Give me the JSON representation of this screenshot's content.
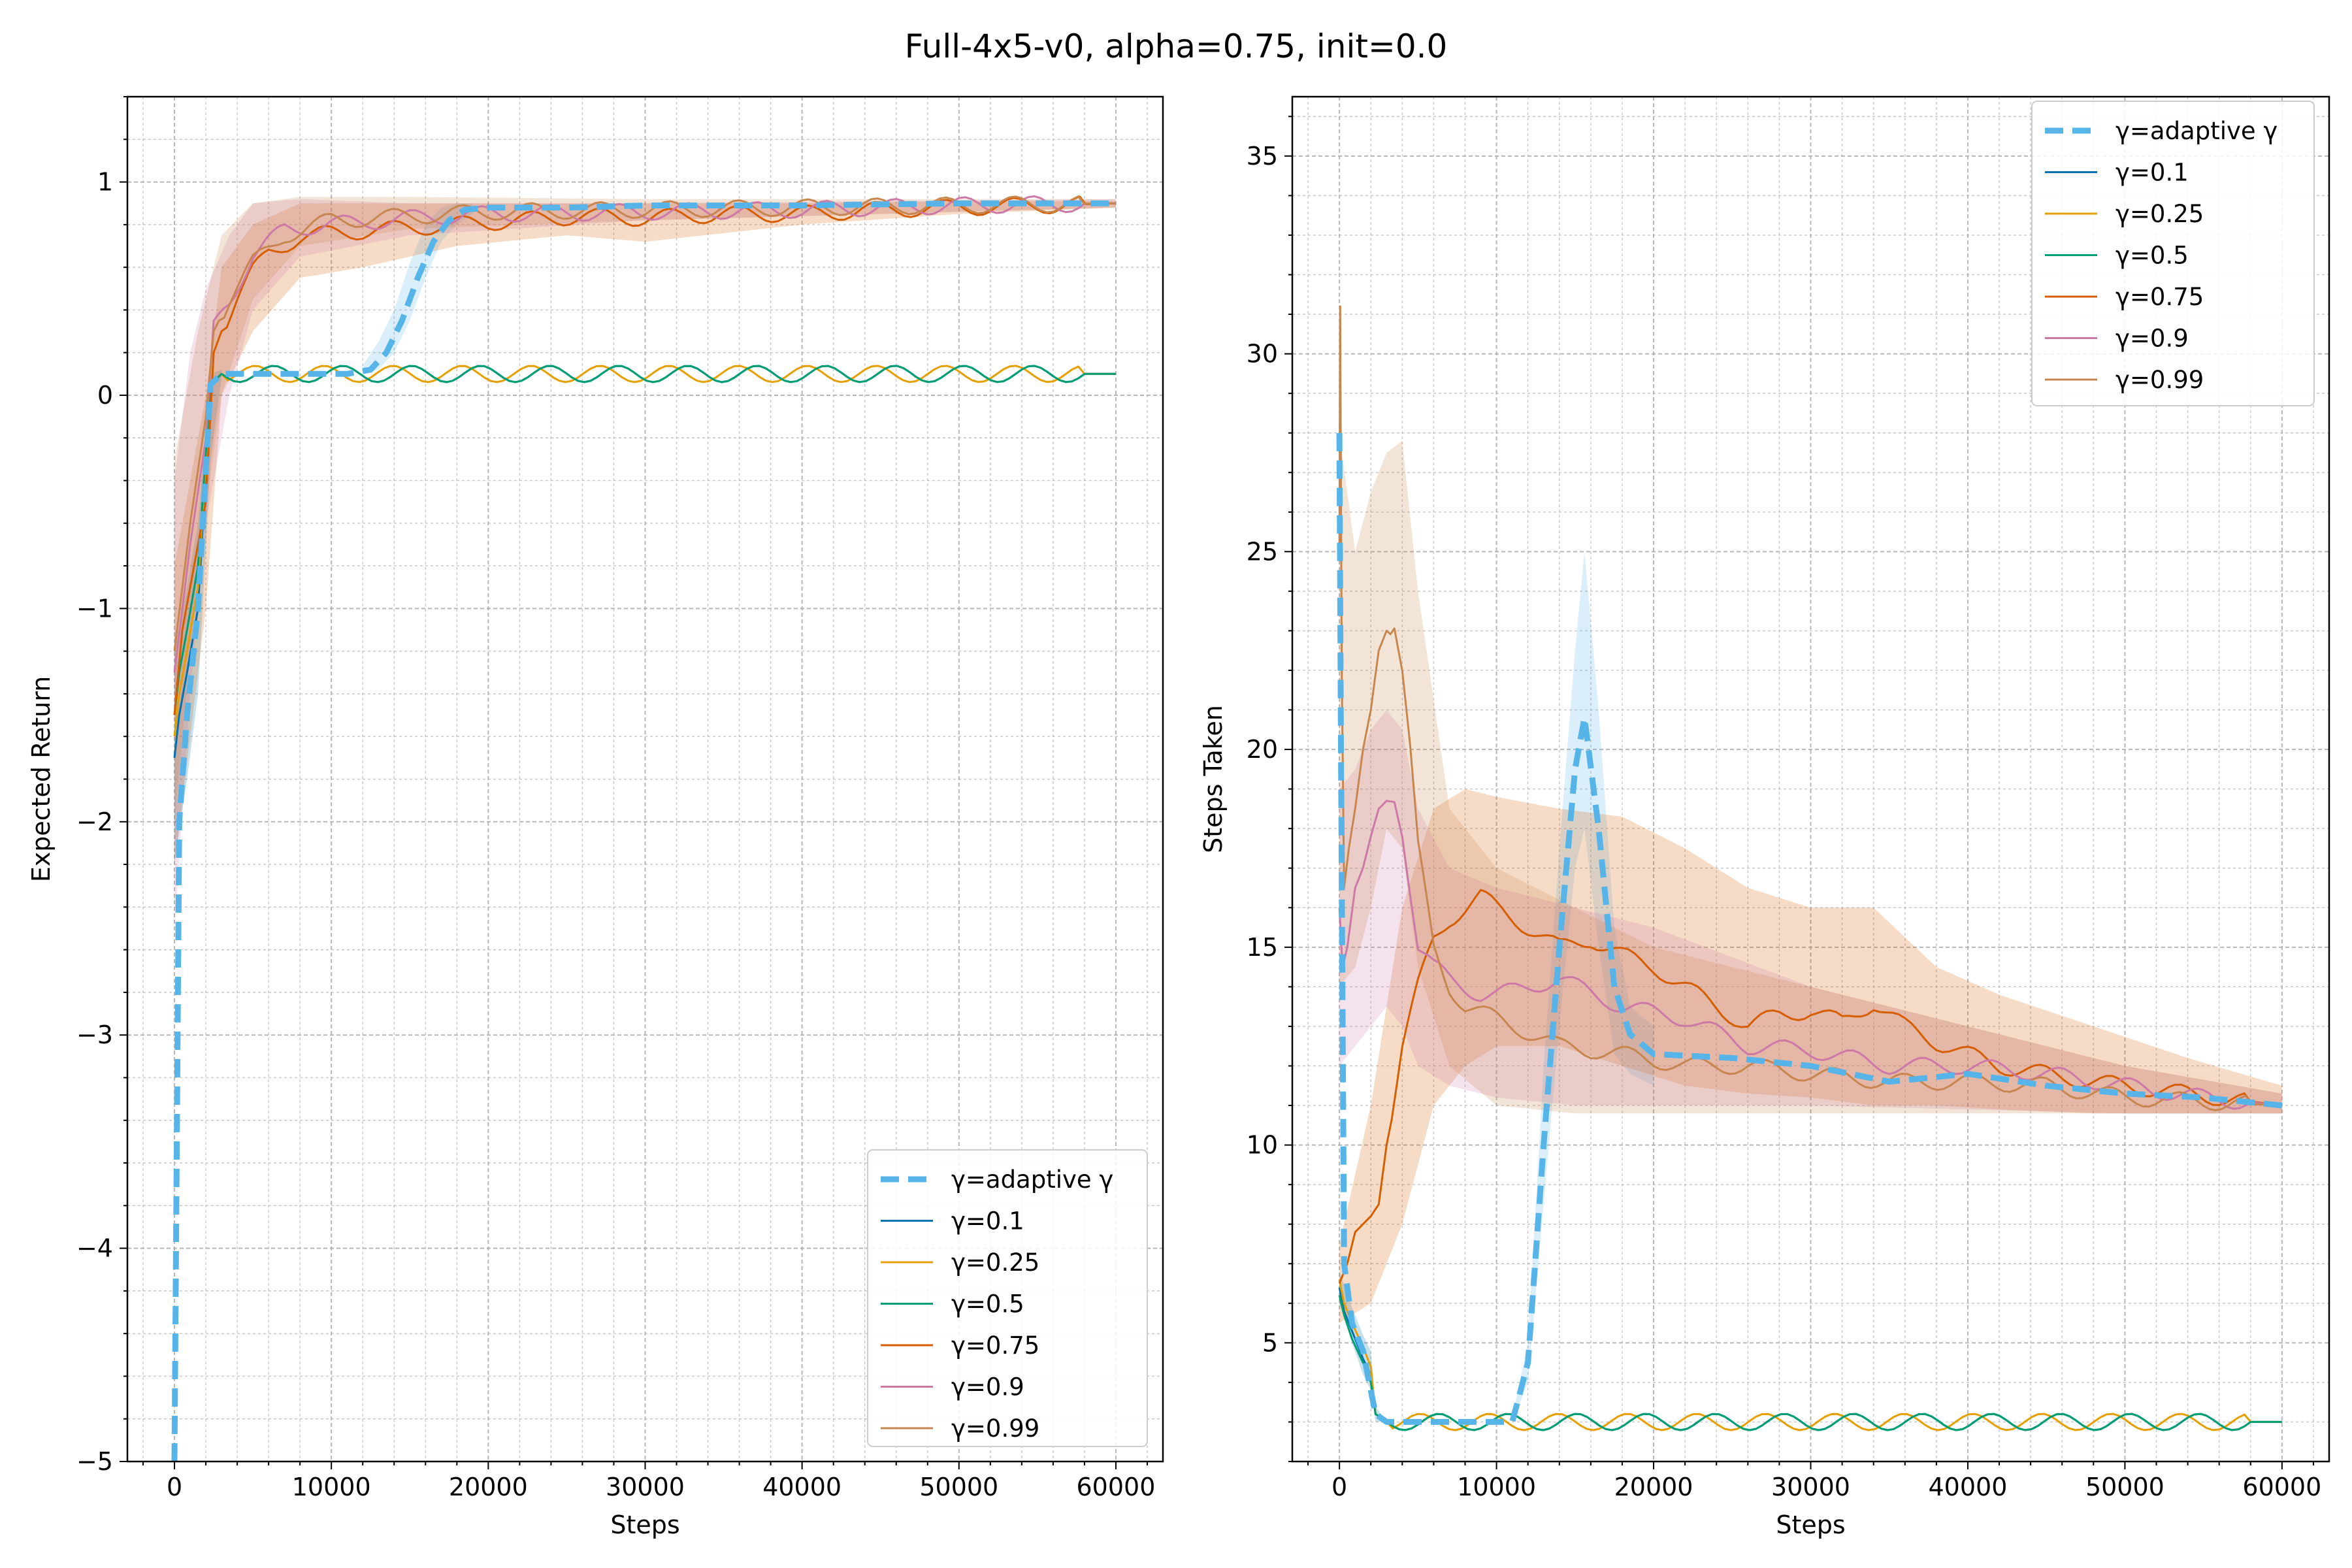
{
  "figure": {
    "title": "Full-4x5-v0, alpha=0.75, init=0.0"
  },
  "colors": {
    "adaptive": "#56b4e9",
    "0.1": "#0072b2",
    "0.25": "#e69f00",
    "0.5": "#009e73",
    "0.75": "#d55e00",
    "0.9": "#cc79a7",
    "0.99": "#c8864f",
    "grid": "#b0b0b0"
  },
  "chart_data": [
    {
      "type": "line",
      "name": "expected-return",
      "xlabel": "Steps",
      "ylabel": "Expected Return",
      "xlim": [
        -3000,
        63000
      ],
      "ylim": [
        -5,
        1.4
      ],
      "xticks": [
        0,
        10000,
        20000,
        30000,
        40000,
        50000,
        60000
      ],
      "yticks": [
        -5,
        -4,
        -3,
        -2,
        -1,
        0,
        1
      ],
      "ytick_labels": [
        "−5",
        "−4",
        "−3",
        "−2",
        "−1",
        "0",
        "1"
      ],
      "grid": true,
      "legend": "lower-right",
      "series": [
        {
          "name": "γ=adaptive γ",
          "key": "adaptive",
          "dashed": true,
          "width": 9,
          "x": [
            0,
            300,
            800,
            1500,
            2300,
            3000,
            5000,
            8000,
            11000,
            12500,
            13500,
            14500,
            15500,
            16500,
            17500,
            18500,
            20000,
            25000,
            30000,
            40000,
            50000,
            60000
          ],
          "y": [
            -5,
            -2.0,
            -1.5,
            -1.0,
            0.05,
            0.1,
            0.1,
            0.1,
            0.1,
            0.12,
            0.2,
            0.35,
            0.55,
            0.72,
            0.82,
            0.87,
            0.88,
            0.88,
            0.89,
            0.89,
            0.9,
            0.9
          ],
          "band": {
            "x": [
              12000,
              13000,
              14000,
              15000,
              16000,
              17000,
              18000,
              19000
            ],
            "lo": [
              0.1,
              0.12,
              0.2,
              0.35,
              0.55,
              0.72,
              0.8,
              0.85
            ],
            "hi": [
              0.14,
              0.25,
              0.4,
              0.62,
              0.8,
              0.88,
              0.9,
              0.9
            ]
          }
        },
        {
          "name": "γ=0.1",
          "key": "0.1",
          "width": 3,
          "x": [
            0,
            300,
            800,
            1500,
            2300,
            3000,
            60000
          ],
          "y": [
            -1.7,
            -1.5,
            -1.3,
            -1.0,
            0.05,
            0.1,
            0.1
          ],
          "band": {
            "x": [
              0,
              800,
              1500,
              2300,
              3000
            ],
            "lo": [
              -2.2,
              -1.8,
              -1.4,
              -0.3,
              0.08
            ],
            "hi": [
              -1.2,
              -0.9,
              -0.6,
              0.1,
              0.12
            ]
          }
        },
        {
          "name": "γ=0.25",
          "key": "0.25",
          "width": 3,
          "x": [
            0,
            300,
            800,
            1500,
            2300,
            3000,
            60000
          ],
          "y": [
            -1.6,
            -1.4,
            -1.2,
            -0.9,
            0.05,
            0.1,
            0.1
          ]
        },
        {
          "name": "γ=0.5",
          "key": "0.5",
          "width": 3,
          "x": [
            0,
            300,
            800,
            1500,
            2300,
            3000,
            60000
          ],
          "y": [
            -1.5,
            -1.3,
            -1.1,
            -0.8,
            0.05,
            0.1,
            0.1
          ]
        },
        {
          "name": "γ=0.75",
          "key": "0.75",
          "width": 3,
          "x": [
            0,
            500,
            1000,
            1500,
            2000,
            2500,
            3000,
            4000,
            5000,
            6000,
            8000,
            10000,
            14000,
            18000,
            22000,
            26000,
            30000,
            35000,
            40000,
            45000,
            50000,
            55000,
            60000
          ],
          "y": [
            -1.5,
            -1.1,
            -0.9,
            -0.7,
            -0.5,
            0.2,
            0.3,
            0.45,
            0.58,
            0.67,
            0.74,
            0.76,
            0.78,
            0.8,
            0.82,
            0.84,
            0.83,
            0.85,
            0.85,
            0.87,
            0.88,
            0.89,
            0.9
          ],
          "band": {
            "x": [
              0,
              2000,
              3000,
              5000,
              8000,
              12000,
              18000,
              25000,
              30000,
              40000,
              50000,
              60000
            ],
            "lo": [
              -2.2,
              -1.0,
              0.0,
              0.3,
              0.55,
              0.6,
              0.7,
              0.75,
              0.72,
              0.8,
              0.85,
              0.88
            ],
            "hi": [
              -0.8,
              0.0,
              0.6,
              0.8,
              0.9,
              0.9,
              0.9,
              0.9,
              0.9,
              0.9,
              0.91,
              0.91
            ]
          }
        },
        {
          "name": "γ=0.9",
          "key": "0.9",
          "width": 3,
          "x": [
            0,
            500,
            1000,
            2000,
            2500,
            3500,
            5000,
            7000,
            10000,
            15000,
            20000,
            30000,
            40000,
            50000,
            60000
          ],
          "y": [
            -1.3,
            -1.0,
            -0.7,
            -0.2,
            0.35,
            0.45,
            0.65,
            0.78,
            0.8,
            0.83,
            0.85,
            0.86,
            0.87,
            0.89,
            0.9
          ],
          "band": {
            "x": [
              0,
              1000,
              2000,
              3500,
              5000,
              8000,
              15000,
              30000,
              60000
            ],
            "lo": [
              -2.5,
              -1.4,
              -0.6,
              0.0,
              0.4,
              0.65,
              0.75,
              0.82,
              0.88
            ],
            "hi": [
              -0.4,
              0.2,
              0.5,
              0.75,
              0.9,
              0.92,
              0.9,
              0.9,
              0.92
            ]
          }
        },
        {
          "name": "γ=0.99",
          "key": "0.99",
          "width": 3,
          "x": [
            0,
            500,
            1000,
            2000,
            2500,
            3500,
            5000,
            7000,
            10000,
            15000,
            20000,
            30000,
            40000,
            50000,
            60000
          ],
          "y": [
            -1.2,
            -0.9,
            -0.6,
            -0.1,
            0.3,
            0.45,
            0.62,
            0.75,
            0.82,
            0.84,
            0.86,
            0.87,
            0.88,
            0.89,
            0.9
          ],
          "band": {
            "x": [
              0,
              1500,
              3000,
              5000,
              8000,
              15000,
              30000,
              60000
            ],
            "lo": [
              -2.0,
              -0.8,
              0.0,
              0.45,
              0.7,
              0.78,
              0.82,
              0.88
            ],
            "hi": [
              -0.3,
              0.3,
              0.75,
              0.9,
              0.93,
              0.93,
              0.92,
              0.92
            ]
          }
        }
      ]
    },
    {
      "type": "line",
      "name": "steps-taken",
      "xlabel": "Steps",
      "ylabel": "Steps Taken",
      "xlim": [
        -3000,
        63000
      ],
      "ylim": [
        2,
        36.5
      ],
      "xticks": [
        0,
        10000,
        20000,
        30000,
        40000,
        50000,
        60000
      ],
      "yticks": [
        5,
        10,
        15,
        20,
        25,
        30,
        35
      ],
      "ytick_labels": [
        "5",
        "10",
        "15",
        "20",
        "25",
        "30",
        "35"
      ],
      "grid": true,
      "legend": "upper-right",
      "series": [
        {
          "name": "γ=adaptive γ",
          "key": "adaptive",
          "dashed": true,
          "width": 9,
          "x": [
            0,
            100,
            300,
            800,
            1500,
            2300,
            3000,
            6000,
            9000,
            11000,
            12000,
            13000,
            14000,
            15000,
            15600,
            16500,
            17500,
            18500,
            20000,
            25000,
            30000,
            35000,
            40000,
            45000,
            50000,
            55000,
            60000
          ],
          "y": [
            28,
            20,
            7,
            5.5,
            4.8,
            3.2,
            3.0,
            3.0,
            3.0,
            3.0,
            4.5,
            10,
            15,
            19.5,
            20.8,
            18,
            14,
            12.8,
            12.3,
            12.2,
            12.0,
            11.6,
            11.8,
            11.5,
            11.3,
            11.2,
            11.0
          ],
          "band": {
            "x": [
              11000,
              12000,
              13000,
              14000,
              15000,
              15600,
              16500,
              17500,
              18500,
              20000
            ],
            "lo": [
              3.0,
              4.0,
              8.5,
              13.0,
              17.0,
              18.0,
              15.0,
              12.3,
              11.8,
              11.5
            ],
            "hi": [
              3.1,
              5.0,
              12.0,
              17.5,
              22.5,
              25.0,
              21.0,
              15.5,
              13.5,
              13.0
            ]
          }
        },
        {
          "name": "γ=0.1",
          "key": "0.1",
          "width": 3,
          "x": [
            0,
            300,
            800,
            1500,
            2000,
            2300,
            3000,
            60000
          ],
          "y": [
            6.4,
            5.8,
            5.3,
            4.6,
            4.2,
            3.2,
            3.0,
            3.0
          ],
          "band": {
            "x": [
              0,
              800,
              1500,
              2000,
              2300,
              3000
            ],
            "lo": [
              6.0,
              5.0,
              4.2,
              3.8,
              3.0,
              3.0
            ],
            "hi": [
              6.8,
              5.9,
              5.2,
              4.8,
              3.4,
              3.0
            ]
          }
        },
        {
          "name": "γ=0.25",
          "key": "0.25",
          "width": 3,
          "x": [
            0,
            300,
            800,
            1500,
            2000,
            2300,
            3000,
            60000
          ],
          "y": [
            6.6,
            6.0,
            5.5,
            4.9,
            4.4,
            3.2,
            3.0,
            3.0
          ]
        },
        {
          "name": "γ=0.5",
          "key": "0.5",
          "width": 3,
          "x": [
            0,
            300,
            800,
            1500,
            2000,
            2300,
            3000,
            60000
          ],
          "y": [
            6.2,
            5.7,
            5.1,
            4.5,
            4.0,
            3.2,
            3.0,
            3.0
          ]
        },
        {
          "name": "γ=0.75",
          "key": "0.75",
          "width": 3,
          "x": [
            0,
            500,
            1000,
            1500,
            2000,
            2500,
            3000,
            4000,
            5000,
            6000,
            7000,
            8000,
            9000,
            10000,
            12000,
            14000,
            16000,
            18000,
            20000,
            22000,
            24000,
            26000,
            28000,
            30000,
            32000,
            34000,
            36000,
            38000,
            40000,
            42000,
            45000,
            48000,
            52000,
            56000,
            60000
          ],
          "y": [
            6.5,
            7.0,
            7.8,
            8.0,
            8.2,
            8.5,
            10.0,
            12.5,
            14.0,
            15.2,
            15.7,
            16.0,
            16.3,
            16.0,
            15.5,
            15.0,
            15.2,
            14.8,
            14.5,
            14.0,
            13.5,
            13.0,
            13.3,
            13.4,
            13.1,
            13.6,
            13.0,
            12.6,
            12.3,
            12.0,
            11.8,
            11.6,
            11.4,
            11.2,
            11.0
          ],
          "band": {
            "x": [
              0,
              2000,
              4000,
              6000,
              8000,
              10000,
              14000,
              18000,
              22000,
              26000,
              30000,
              34000,
              38000,
              42000,
              48000,
              54000,
              60000
            ],
            "lo": [
              5.5,
              6.0,
              8.0,
              11.0,
              12.0,
              12.5,
              12.5,
              12.0,
              11.5,
              11.3,
              11.2,
              11.0,
              11.0,
              10.9,
              10.8,
              10.8,
              10.8
            ],
            "hi": [
              7.5,
              11.0,
              16.0,
              18.5,
              19.0,
              18.8,
              18.5,
              18.3,
              17.5,
              16.5,
              16.0,
              16.0,
              14.5,
              13.8,
              13.0,
              12.2,
              11.5
            ]
          }
        },
        {
          "name": "γ=0.9",
          "key": "0.9",
          "width": 3,
          "x": [
            0,
            200,
            500,
            1000,
            1500,
            2000,
            2500,
            3000,
            3500,
            4000,
            4500,
            5000,
            6000,
            7000,
            8000,
            9000,
            10000,
            14000,
            18000,
            22000,
            26000,
            30000,
            35000,
            40000,
            45000,
            50000,
            55000,
            60000
          ],
          "y": [
            16,
            14.5,
            15.0,
            16.5,
            17.0,
            17.8,
            18.5,
            18.7,
            18.8,
            18.0,
            16.5,
            15.0,
            14.5,
            14.2,
            14.0,
            13.8,
            13.8,
            14.2,
            13.5,
            13.2,
            12.5,
            12.4,
            12.0,
            12.0,
            11.8,
            11.5,
            11.2,
            11.0
          ],
          "band": {
            "x": [
              0,
              1000,
              2000,
              3000,
              4000,
              5000,
              7000,
              10000,
              15000,
              20000,
              30000,
              40000,
              50000,
              60000
            ],
            "lo": [
              12.0,
              12.5,
              13.0,
              13.5,
              13.0,
              12.0,
              11.5,
              11.2,
              11.0,
              11.0,
              11.0,
              10.9,
              10.8,
              10.8
            ],
            "hi": [
              19.0,
              19.5,
              20.5,
              21.0,
              20.5,
              18.5,
              17.0,
              16.5,
              16.0,
              15.5,
              14.0,
              13.0,
              12.0,
              11.3
            ]
          }
        },
        {
          "name": "γ=0.99",
          "key": "0.99",
          "width": 3,
          "x": [
            0,
            50,
            150,
            300,
            600,
            1000,
            1500,
            2000,
            2500,
            3000,
            3500,
            4000,
            4500,
            5000,
            6000,
            7000,
            8000,
            10000,
            14000,
            18000,
            22000,
            26000,
            30000,
            35000,
            40000,
            45000,
            50000,
            55000,
            60000
          ],
          "y": [
            25,
            31.2,
            22,
            16.5,
            17.5,
            18.5,
            20.0,
            21.0,
            22.5,
            23.0,
            23.2,
            22.0,
            20.0,
            17.5,
            15.0,
            14.0,
            13.5,
            13.2,
            12.5,
            12.3,
            12.0,
            12.0,
            11.8,
            11.6,
            11.6,
            11.5,
            11.2,
            11.1,
            11.0
          ],
          "band": {
            "x": [
              0,
              1000,
              2000,
              3000,
              4000,
              5000,
              7000,
              10000,
              15000,
              20000,
              30000,
              40000,
              50000,
              60000
            ],
            "lo": [
              14.0,
              14.5,
              16.0,
              18.0,
              17.5,
              14.5,
              12.0,
              11.0,
              10.8,
              10.8,
              10.8,
              10.8,
              10.8,
              10.8
            ],
            "hi": [
              28.0,
              25.0,
              26.5,
              27.5,
              27.8,
              24.0,
              18.5,
              17.0,
              16.0,
              15.0,
              14.0,
              13.0,
              12.0,
              11.3
            ]
          }
        }
      ]
    }
  ]
}
